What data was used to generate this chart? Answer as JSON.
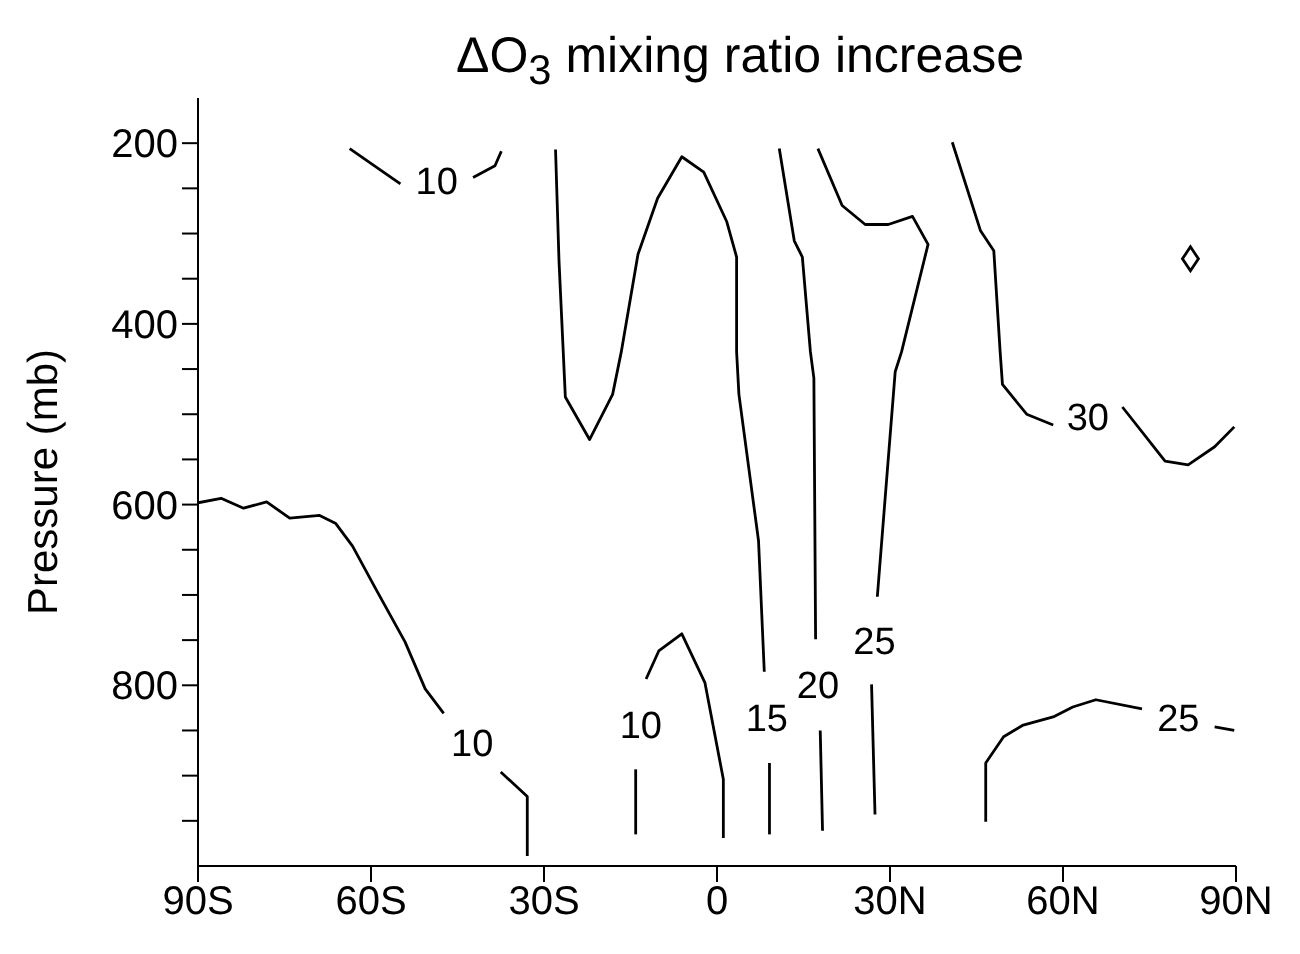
{
  "chart_data": {
    "type": "line",
    "title": "ΔO$_{3}$ mixing ratio increase",
    "ylabel": "Pressure (mb)",
    "xlim": [
      -90,
      90
    ],
    "xticks": [
      {
        "value": -90,
        "label": "90S"
      },
      {
        "value": -60,
        "label": "60S"
      },
      {
        "value": -30,
        "label": "30S"
      },
      0,
      {
        "value": 30,
        "label": "30N"
      },
      {
        "value": 60,
        "label": "60N"
      },
      {
        "value": 90,
        "label": "90N"
      }
    ],
    "ylim": [
      1000,
      150
    ],
    "yticks": [
      200,
      {
        "value": 250,
        "label": null
      },
      {
        "value": 300,
        "label": null
      },
      {
        "value": 350,
        "label": null
      },
      400,
      {
        "value": 450,
        "label": null
      },
      {
        "value": 500,
        "label": null
      },
      {
        "value": 550,
        "label": null
      },
      600,
      {
        "value": 650,
        "label": null
      },
      {
        "value": 700,
        "label": null
      },
      {
        "value": 750,
        "label": null
      },
      800,
      {
        "value": 850,
        "label": null
      },
      {
        "value": 900,
        "label": null
      },
      {
        "value": 950,
        "label": null
      }
    ],
    "grid": false,
    "legend": false,
    "marker": "none",
    "line_style": "solid",
    "series": [
      {
        "name": "10",
        "color": "#000000",
        "x": [
          -90,
          -86,
          -82.1,
          -78.1,
          -74.1,
          -68.9,
          -66.1,
          -63.2,
          -59.2,
          -54.1,
          -50.6,
          -47.4
        ],
        "values": [
          598,
          593,
          604,
          597,
          615,
          612,
          621,
          646,
          693,
          752,
          804,
          831
        ]
      },
      {
        "color": "#000000",
        "x": [
          -37.5,
          -32.9,
          -32.9
        ],
        "values": [
          896,
          923,
          989
        ]
      },
      {
        "name": "10",
        "color": "#000000",
        "x": [
          -63.7,
          -54.9
        ],
        "values": [
          206,
          245
        ]
      },
      {
        "color": "#000000",
        "x": [
          -42.3,
          -38.5,
          -37.4
        ],
        "values": [
          238,
          225,
          209
        ]
      },
      {
        "name": "15",
        "color": "#000000",
        "x": [
          -28,
          -27.4,
          -26.3,
          -22.1,
          -18.1,
          -16.6,
          -13.7,
          -10.3,
          -6.1,
          -2.3,
          1.7,
          3.4,
          3.4,
          3.8,
          7.2,
          8.2
        ],
        "values": [
          207,
          330,
          481,
          528,
          478,
          431,
          323,
          261,
          215,
          232,
          287,
          326,
          431,
          478,
          640,
          785
        ]
      },
      {
        "color": "#000000",
        "x": [
          9.1,
          9.1
        ],
        "values": [
          886,
          965
        ]
      },
      {
        "name": "10",
        "color": "#000000",
        "x": [
          -14.1,
          -14.1
        ],
        "values": [
          965,
          893
        ]
      },
      {
        "color": "#000000",
        "x": [
          -12.3,
          -10.1,
          -6.1,
          -2.1,
          1.1,
          1.1
        ],
        "values": [
          793,
          762,
          743,
          797,
          904,
          969
        ]
      },
      {
        "name": "20",
        "color": "#000000",
        "x": [
          10.8,
          13.4,
          14.8,
          16.2,
          16.8,
          17.1
        ],
        "values": [
          206,
          308,
          326,
          431,
          460,
          749
        ]
      },
      {
        "color": "#000000",
        "x": [
          17.9,
          18.3
        ],
        "values": [
          850,
          961
        ]
      },
      {
        "name": "25",
        "color": "#000000",
        "x": [
          17.5,
          21.7,
          25.7,
          29.7,
          33.9,
          36.6,
          32,
          30.9,
          27.8
        ],
        "values": [
          206,
          269,
          290,
          290,
          281,
          312,
          431,
          453,
          702
        ]
      },
      {
        "color": "#000000",
        "x": [
          26.8,
          27.4
        ],
        "values": [
          799,
          943
        ]
      },
      {
        "name": "30",
        "color": "#000000",
        "x": [
          40.8,
          45.7,
          48,
          49.1,
          49.5,
          53.7,
          58.3
        ],
        "values": [
          199,
          297,
          319,
          431,
          467,
          500,
          512
        ]
      },
      {
        "color": "#000000",
        "x": [
          70.3,
          77.7,
          81.7,
          86.3,
          89.7
        ],
        "values": [
          492,
          552,
          556,
          536,
          514
        ]
      },
      {
        "name": "25",
        "color": "#000000",
        "x": [
          46.6,
          46.6,
          49.7,
          53.1,
          58.3,
          61.7,
          65.7,
          73.7
        ],
        "values": [
          951,
          886,
          857,
          844,
          835,
          824,
          816,
          826
        ]
      },
      {
        "color": "#000000",
        "x": [
          86.3,
          89.7
        ],
        "values": [
          846,
          850
        ]
      },
      {
        "type": "scatter",
        "marker": "diamond",
        "color": "#000000",
        "x": [
          82.1
        ],
        "values": [
          328
        ]
      }
    ]
  }
}
